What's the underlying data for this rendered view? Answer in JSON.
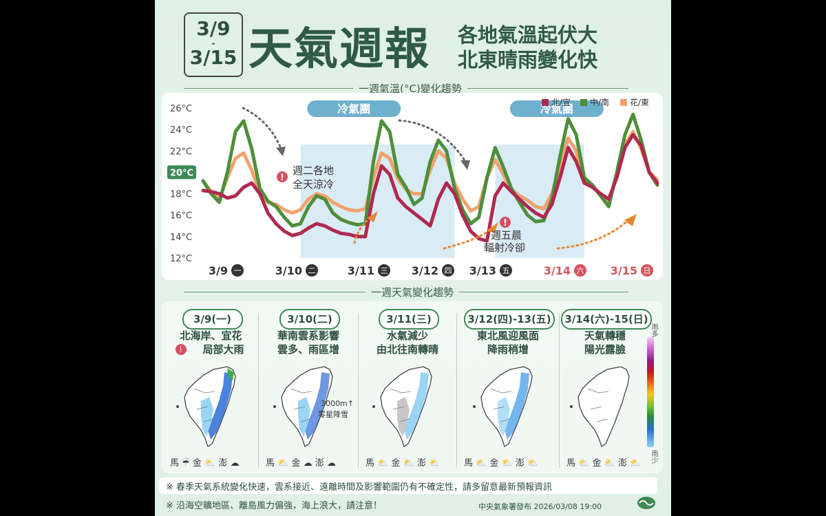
{
  "header": {
    "date_start": "3/9",
    "date_sep": "-",
    "date_end": "3/15",
    "title": "天氣週報",
    "subtitle_1": "各地氣溫起伏大",
    "subtitle_2": "北東晴雨變化快"
  },
  "temp_section_title": "一週氣溫(°C)變化趨勢",
  "weather_section_title": "一週天氣變化趨勢",
  "chart_data": {
    "type": "line",
    "title": "一週氣溫(°C)變化趨勢",
    "x": [
      0,
      0.5,
      1,
      1.5,
      2,
      2.5,
      3,
      3.5,
      4,
      4.5,
      5,
      5.5,
      6,
      6.5,
      7,
      7.5,
      8,
      8.5,
      9,
      9.5,
      10,
      10.5,
      11,
      11.5,
      12,
      12.5,
      13,
      13.5,
      14,
      14.5,
      15,
      15.5,
      16,
      16.5,
      17,
      17.5,
      18,
      18.5,
      19,
      19.5,
      20,
      20.5,
      21
    ],
    "categories": [
      "3/9",
      "3/10",
      "3/11",
      "3/12",
      "3/13",
      "3/14",
      "3/15"
    ],
    "category_weekdays": [
      "一",
      "二",
      "三",
      "四",
      "五",
      "六",
      "日"
    ],
    "weekend_color": "#d6545e",
    "ylim": [
      12,
      26.5
    ],
    "yticks": [
      "12°C",
      "14°C",
      "16°C",
      "18°C",
      "20°C",
      "22°C",
      "24°C",
      "26°C"
    ],
    "highlight_tick": "20°C",
    "series": [
      {
        "name": "北/宜",
        "color": "#b0294f",
        "values": [
          18.3,
          18.2,
          18.0,
          17.6,
          17.8,
          18.6,
          19.0,
          18.0,
          16.2,
          15.2,
          14.5,
          14.1,
          14.3,
          14.8,
          15.2,
          15.0,
          14.6,
          14.3,
          14.2,
          14.0,
          14.0,
          18.0,
          20.6,
          19.8,
          17.6,
          16.8,
          16.2,
          15.6,
          15.0,
          17.5,
          19.0,
          18.0,
          16.0,
          14.5,
          13.8,
          13.6,
          17.8,
          19.0,
          18.2,
          17.5,
          16.8,
          16.2,
          15.8
        ]
      },
      {
        "name": "中/南",
        "color": "#4d8f3a",
        "values": [
          19.2,
          18.0,
          17.2,
          20.0,
          23.8,
          24.8,
          22.2,
          18.5,
          17.3,
          16.8,
          15.8,
          15.0,
          15.2,
          16.8,
          17.8,
          17.5,
          16.2,
          15.6,
          15.3,
          15.1,
          15.2,
          21.0,
          24.8,
          23.8,
          19.8,
          18.6,
          17.0,
          17.6,
          21.0,
          23.0,
          22.0,
          18.5,
          16.5,
          15.2,
          15.8,
          19.5,
          22.3,
          20.5,
          18.5,
          17.2,
          16.0,
          15.4,
          15.5
        ]
      },
      {
        "name": "花/東",
        "color": "#f0a36c",
        "values": [
          19.2,
          18.2,
          17.5,
          19.5,
          21.3,
          21.8,
          20.2,
          18.0,
          17.2,
          17.0,
          16.5,
          16.2,
          16.5,
          17.5,
          18.0,
          17.8,
          17.2,
          16.8,
          16.5,
          16.4,
          16.6,
          19.5,
          21.8,
          21.3,
          19.4,
          18.4,
          18.0,
          18.0,
          20.2,
          22.0,
          21.3,
          19.0,
          17.5,
          16.4,
          16.8,
          19.5,
          21.2,
          19.8,
          18.4,
          17.8,
          17.4,
          16.8,
          16.6
        ]
      }
    ],
    "extension_x": [
      21,
      21.5,
      22,
      22.5,
      23,
      23.5,
      24,
      24.5,
      25,
      25.5,
      26,
      26.5,
      27,
      27.5,
      28
    ],
    "extension_series": [
      {
        "name": "北/宜",
        "values": [
          15.8,
          17.0,
          19.5,
          22.3,
          21.0,
          19.0,
          18.6,
          18.0,
          17.5,
          19.5,
          22.3,
          23.5,
          22.5,
          20.0,
          19.0
        ]
      },
      {
        "name": "中/南",
        "values": [
          15.5,
          17.5,
          21.5,
          25.0,
          23.5,
          19.5,
          18.8,
          17.8,
          16.8,
          20.0,
          23.5,
          25.4,
          23.0,
          20.0,
          18.8
        ]
      },
      {
        "name": "花/東",
        "values": [
          16.6,
          18.0,
          20.6,
          23.2,
          22.0,
          19.2,
          18.7,
          18.0,
          17.2,
          19.8,
          22.6,
          23.8,
          22.2,
          20.0,
          19.3
        ]
      }
    ],
    "cold_labels": [
      "冷氣團",
      "冷氣團"
    ],
    "callouts": [
      "週二各地",
      "全天涼冷",
      "週五晨",
      "輻射冷卻"
    ]
  },
  "weather_columns": [
    {
      "date": "3/9(一)",
      "line1": "北海岸、宜花",
      "line2": "局部大雨",
      "alert": true,
      "islands": "馬 ☔ 金 ⛅ 澎 ☁"
    },
    {
      "date": "3/10(二)",
      "line1": "華南雲系影響",
      "line2": "雲多、雨區增",
      "alert": false,
      "snow_note_1": "3000m↑",
      "snow_note_2": "零星降雪",
      "islands": "馬 ⛅ 金 ☁ 澎 ☁"
    },
    {
      "date": "3/11(三)",
      "line1": "水氣減少",
      "line2": "由北往南轉晴",
      "alert": false,
      "islands": "馬 ⛅ 金 ⛅ 澎 ⛅"
    },
    {
      "date": "3/12(四)-13(五)",
      "line1": "東北風迎風面",
      "line2": "降雨稍增",
      "alert": false,
      "islands": "馬 ⛅ 金 ⛅ 澎 ⛅"
    },
    {
      "date": "3/14(六)-15(日)",
      "line1": "天氣轉穩",
      "line2": "陽光露臉",
      "alert": false,
      "islands": "馬 ⛅ 金 ⛅ 澎 ⛅"
    }
  ],
  "rain_legend": {
    "top": "雨多",
    "bottom": "雨少"
  },
  "notes": {
    "note1": "※ 春季天氣系統變化快速，雲系接近、遠離時間及影響範圍仍有不確定性，請多留意最新預報資訊",
    "note2": "※ 沿海空曠地區、離島風力偏強，海上浪大，請注意！",
    "publisher": "中央氣象署發布 2026/03/08 19:00"
  }
}
